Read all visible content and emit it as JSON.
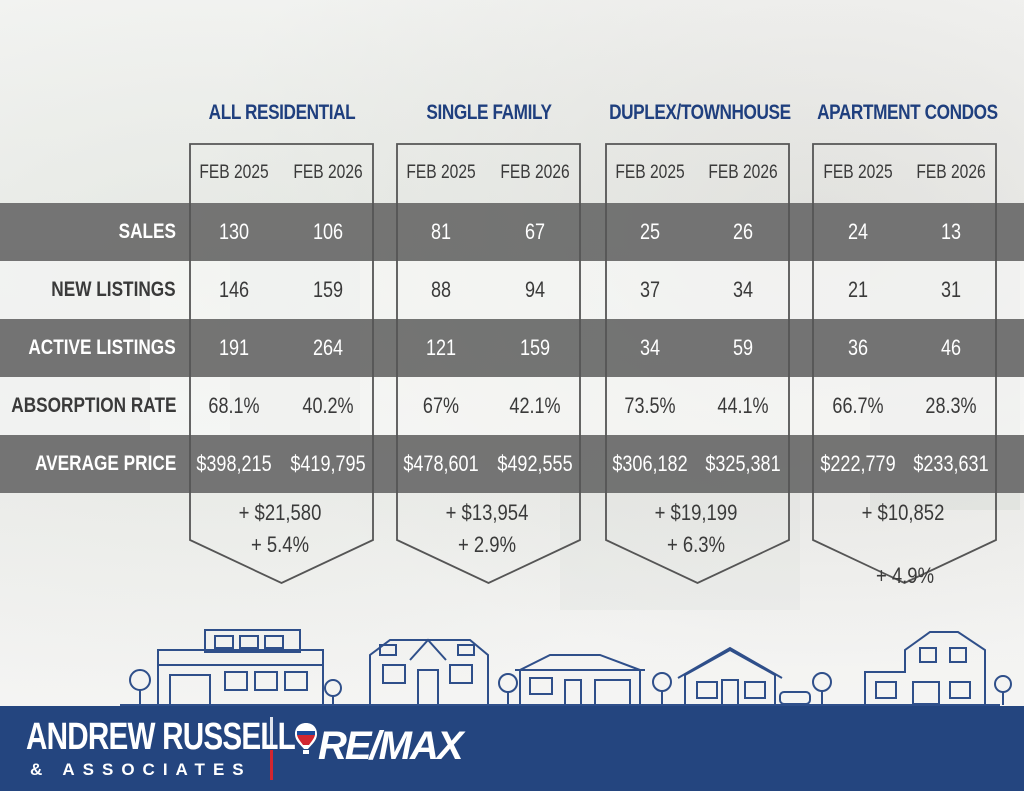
{
  "columns": [
    {
      "title": "ALL RESIDENTIAL",
      "year_a": "FEB 2025",
      "year_b": "FEB 2026",
      "values": [
        [
          "130",
          "106"
        ],
        [
          "146",
          "159"
        ],
        [
          "191",
          "264"
        ],
        [
          "68.1%",
          "40.2%"
        ],
        [
          "$398,215",
          "$419,795"
        ]
      ],
      "diff_amount": "+ $21,580",
      "diff_percent": "+ 5.4%"
    },
    {
      "title": "SINGLE FAMILY",
      "year_a": "FEB 2025",
      "year_b": "FEB 2026",
      "values": [
        [
          "81",
          "67"
        ],
        [
          "88",
          "94"
        ],
        [
          "121",
          "159"
        ],
        [
          "67%",
          "42.1%"
        ],
        [
          "$478,601",
          "$492,555"
        ]
      ],
      "diff_amount": "+ $13,954",
      "diff_percent": "+ 2.9%"
    },
    {
      "title": "DUPLEX/TOWNHOUSE",
      "year_a": "FEB 2025",
      "year_b": "FEB 2026",
      "values": [
        [
          "25",
          "26"
        ],
        [
          "37",
          "34"
        ],
        [
          "34",
          "59"
        ],
        [
          "73.5%",
          "44.1%"
        ],
        [
          "$306,182",
          "$325,381"
        ]
      ],
      "diff_amount": "+ $19,199",
      "diff_percent": "+ 6.3%"
    },
    {
      "title": "APARTMENT CONDOS",
      "year_a": "FEB 2025",
      "year_b": "FEB 2026",
      "values": [
        [
          "24",
          "13"
        ],
        [
          "21",
          "31"
        ],
        [
          "36",
          "46"
        ],
        [
          "66.7%",
          "28.3%"
        ],
        [
          "$222,779",
          "$233,631"
        ]
      ],
      "diff_amount": "+ $10,852",
      "diff_percent": "+ 4.9%"
    }
  ],
  "rows": [
    "SALES",
    "NEW LISTINGS",
    "ACTIVE LISTINGS",
    "ABSORPTION RATE",
    "AVERAGE PRICE"
  ],
  "footer": {
    "brand_name": "ANDREW RUSSELL",
    "brand_sub": "& ASSOCIATES",
    "partner_logo": "RE/MAX",
    "balloon_icon": "hot-air-balloon-icon"
  },
  "colors": {
    "navy": "#24457f",
    "heading_blue": "#1f3f7e",
    "band_gray": "#6b6b6b",
    "remax_red": "#d22630",
    "remax_blue": "#1b4a9c"
  }
}
